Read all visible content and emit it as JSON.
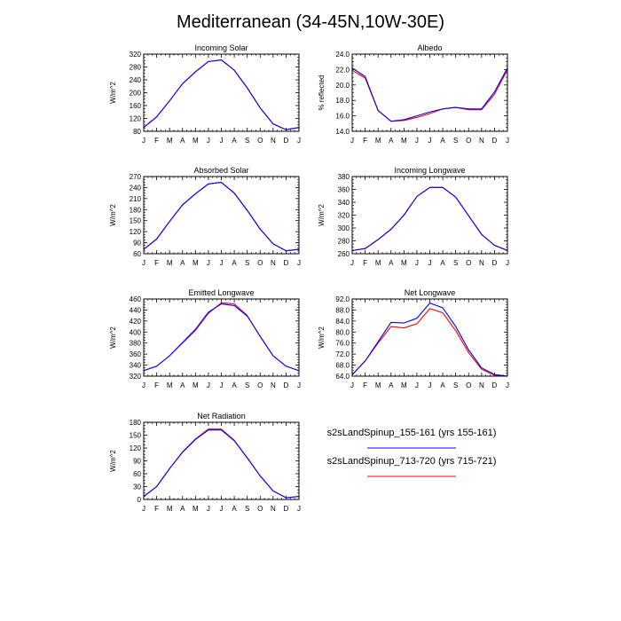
{
  "figure": {
    "title": "Mediterranean (34-45N,10W-30E)"
  },
  "chart_data": [
    {
      "type": "line",
      "title": "Incoming Solar",
      "xlabel": "",
      "ylabel": "W/m^2",
      "categories": [
        "J",
        "F",
        "M",
        "A",
        "M",
        "J",
        "J",
        "A",
        "S",
        "O",
        "N",
        "D",
        "J"
      ],
      "ylim": [
        80,
        320
      ],
      "yticks": [
        80,
        120,
        160,
        200,
        240,
        280,
        320
      ],
      "ytick_labels": [
        "80",
        "120",
        "160",
        "200",
        "240",
        "280",
        "320"
      ],
      "series": [
        {
          "name": "s2sLandSpinup_713-720 (yrs 715-721)",
          "color": "#ff0000",
          "values": [
            92,
            125,
            175,
            228,
            265,
            297,
            302,
            270,
            215,
            153,
            103,
            85,
            92
          ]
        },
        {
          "name": "s2sLandSpinup_155-161 (yrs 155-161)",
          "color": "#0000ff",
          "values": [
            92,
            125,
            175,
            228,
            265,
            297,
            302,
            270,
            215,
            153,
            103,
            85,
            92
          ]
        }
      ]
    },
    {
      "type": "line",
      "title": "Albedo",
      "xlabel": "",
      "ylabel": "% reflected",
      "categories": [
        "J",
        "F",
        "M",
        "A",
        "M",
        "J",
        "J",
        "A",
        "S",
        "O",
        "N",
        "D",
        "J"
      ],
      "ylim": [
        14,
        24
      ],
      "yticks": [
        14,
        16,
        18,
        20,
        22,
        24
      ],
      "ytick_labels": [
        "14.0",
        "16.0",
        "18.0",
        "20.0",
        "22.0",
        "24.0"
      ],
      "series": [
        {
          "name": "s2sLandSpinup_713-720 (yrs 715-721)",
          "color": "#ff0000",
          "values": [
            21.9,
            20.9,
            16.7,
            15.3,
            15.4,
            15.8,
            16.3,
            16.9,
            17.1,
            16.8,
            16.8,
            18.8,
            22.0
          ]
        },
        {
          "name": "s2sLandSpinup_155-161 (yrs 155-161)",
          "color": "#0000ff",
          "values": [
            22.2,
            21.1,
            16.7,
            15.3,
            15.5,
            16.0,
            16.5,
            16.9,
            17.1,
            16.9,
            16.9,
            19.1,
            22.2
          ]
        }
      ]
    },
    {
      "type": "line",
      "title": "Absorbed Solar",
      "xlabel": "",
      "ylabel": "W/m^2",
      "categories": [
        "J",
        "F",
        "M",
        "A",
        "M",
        "J",
        "J",
        "A",
        "S",
        "O",
        "N",
        "D",
        "J"
      ],
      "ylim": [
        60,
        270
      ],
      "yticks": [
        60,
        90,
        120,
        150,
        180,
        210,
        240,
        270
      ],
      "ytick_labels": [
        "60",
        "90",
        "120",
        "150",
        "180",
        "210",
        "240",
        "270"
      ],
      "series": [
        {
          "name": "s2sLandSpinup_713-720 (yrs 715-721)",
          "color": "#ff0000",
          "values": [
            72,
            100,
            148,
            193,
            223,
            250,
            254,
            225,
            178,
            127,
            87,
            68,
            72
          ]
        },
        {
          "name": "s2sLandSpinup_155-161 (yrs 155-161)",
          "color": "#0000ff",
          "values": [
            72,
            100,
            148,
            193,
            223,
            250,
            254,
            225,
            178,
            127,
            87,
            68,
            72
          ]
        }
      ]
    },
    {
      "type": "line",
      "title": "Incoming Longwave",
      "xlabel": "",
      "ylabel": "W/m^2",
      "categories": [
        "J",
        "F",
        "M",
        "A",
        "M",
        "J",
        "J",
        "A",
        "S",
        "O",
        "N",
        "D",
        "J"
      ],
      "ylim": [
        260,
        380
      ],
      "yticks": [
        260,
        280,
        300,
        320,
        340,
        360,
        380
      ],
      "ytick_labels": [
        "260",
        "280",
        "300",
        "320",
        "340",
        "360",
        "380"
      ],
      "series": [
        {
          "name": "s2sLandSpinup_713-720 (yrs 715-721)",
          "color": "#ff0000",
          "values": [
            265,
            268,
            282,
            298,
            320,
            349,
            363,
            363,
            348,
            319,
            290,
            273,
            265
          ]
        },
        {
          "name": "s2sLandSpinup_155-161 (yrs 155-161)",
          "color": "#0000ff",
          "values": [
            265,
            268,
            282,
            298,
            320,
            349,
            363,
            363,
            348,
            319,
            290,
            273,
            265
          ]
        }
      ]
    },
    {
      "type": "line",
      "title": "Emitted Longwave",
      "xlabel": "",
      "ylabel": "W/m^2",
      "categories": [
        "J",
        "F",
        "M",
        "A",
        "M",
        "J",
        "J",
        "A",
        "S",
        "O",
        "N",
        "D",
        "J"
      ],
      "ylim": [
        320,
        460
      ],
      "yticks": [
        320,
        340,
        360,
        380,
        400,
        420,
        440,
        460
      ],
      "ytick_labels": [
        "320",
        "340",
        "360",
        "380",
        "400",
        "420",
        "440",
        "460"
      ],
      "series": [
        {
          "name": "s2sLandSpinup_713-720 (yrs 715-721)",
          "color": "#ff0000",
          "values": [
            330,
            338,
            357,
            380,
            403,
            434,
            453,
            451,
            430,
            392,
            357,
            338,
            330
          ]
        },
        {
          "name": "s2sLandSpinup_155-161 (yrs 155-161)",
          "color": "#0000ff",
          "values": [
            330,
            338,
            357,
            381,
            405,
            436,
            451,
            448,
            429,
            392,
            357,
            338,
            330
          ]
        }
      ]
    },
    {
      "type": "line",
      "title": "Net Longwave",
      "xlabel": "",
      "ylabel": "W/m^2",
      "categories": [
        "J",
        "F",
        "M",
        "A",
        "M",
        "J",
        "J",
        "A",
        "S",
        "O",
        "N",
        "D",
        "J"
      ],
      "ylim": [
        64,
        92
      ],
      "yticks": [
        64,
        68,
        72,
        76,
        80,
        84,
        88,
        92
      ],
      "ytick_labels": [
        "64.0",
        "68.0",
        "72.0",
        "76.0",
        "80.0",
        "84.0",
        "88.0",
        "92.0"
      ],
      "series": [
        {
          "name": "s2sLandSpinup_713-720 (yrs 715-721)",
          "color": "#ff0000",
          "values": [
            64.5,
            69.5,
            76.0,
            82.0,
            81.5,
            83.0,
            88.5,
            87.0,
            80.5,
            72.5,
            66.5,
            64.3,
            64.0
          ]
        },
        {
          "name": "s2sLandSpinup_155-161 (yrs 155-161)",
          "color": "#0000ff",
          "values": [
            64.5,
            69.5,
            76.5,
            83.5,
            83.3,
            85.0,
            90.5,
            88.8,
            82.0,
            73.5,
            67.0,
            64.6,
            64.0
          ]
        }
      ]
    },
    {
      "type": "line",
      "title": "Net Radiation",
      "xlabel": "",
      "ylabel": "W/m^2",
      "categories": [
        "J",
        "F",
        "M",
        "A",
        "M",
        "J",
        "J",
        "A",
        "S",
        "O",
        "N",
        "D",
        "J"
      ],
      "ylim": [
        0,
        180
      ],
      "yticks": [
        0,
        30,
        60,
        90,
        120,
        150,
        180
      ],
      "ytick_labels": [
        "0",
        "30",
        "60",
        "90",
        "120",
        "150",
        "180"
      ],
      "series": [
        {
          "name": "s2sLandSpinup_713-720 (yrs 715-721)",
          "color": "#ff0000",
          "values": [
            7,
            30,
            72,
            111,
            141,
            164,
            164,
            138,
            97,
            55,
            20,
            4,
            7
          ]
        },
        {
          "name": "s2sLandSpinup_155-161 (yrs 155-161)",
          "color": "#0000ff",
          "values": [
            7,
            30,
            72,
            110,
            140,
            162,
            162,
            137,
            97,
            55,
            20,
            4,
            7
          ]
        }
      ]
    }
  ],
  "legend": [
    {
      "label": "s2sLandSpinup_155-161 (yrs 155-161)",
      "color": "#0000ff"
    },
    {
      "label": "s2sLandSpinup_713-720 (yrs 715-721)",
      "color": "#ff0000"
    }
  ]
}
